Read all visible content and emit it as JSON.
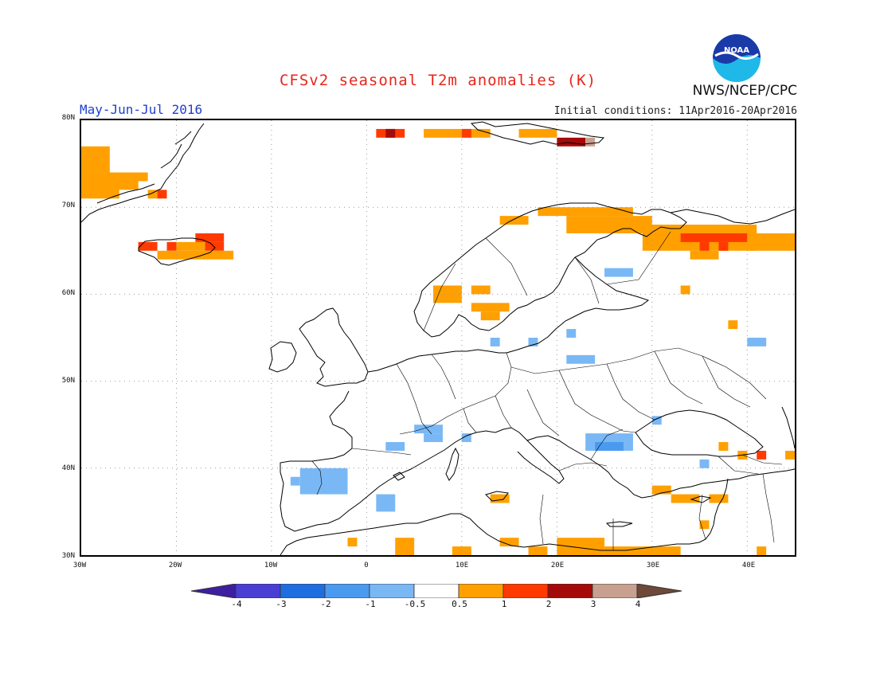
{
  "header": {
    "title": "CFSv2 seasonal T2m anomalies (K)",
    "period": "May-Jun-Jul 2016",
    "initial_conditions": "Initial conditions: 11Apr2016-20Apr2016",
    "organization": "NWS/NCEP/CPC",
    "logo_text": "NOAA"
  },
  "axes": {
    "lat_labels": [
      "80N",
      "70N",
      "60N",
      "50N",
      "40N",
      "30N"
    ],
    "lon_labels": [
      "30W",
      "20W",
      "10W",
      "0",
      "10E",
      "20E",
      "30E",
      "40E"
    ]
  },
  "colorbar": {
    "labels": [
      "-4",
      "-3",
      "-2",
      "-1",
      "-0.5",
      "0.5",
      "1",
      "2",
      "3",
      "4"
    ],
    "colors": [
      "#3d1fa0",
      "#4a3fd4",
      "#1f6ee0",
      "#4a9af0",
      "#7ab8f5",
      "#ffffff",
      "#ffa000",
      "#ff3a00",
      "#a50a0a",
      "#c8a090",
      "#6e4838"
    ]
  },
  "map": {
    "extent": {
      "lon_min": -30,
      "lon_max": 45,
      "lat_min": 30,
      "lat_max": 80
    },
    "grid_step_degrees": 1,
    "anomaly_colors": {
      "warm1": "#ffa000",
      "warm2": "#ff3a00",
      "warm3": "#a50a0a",
      "warm4": "#c8a090",
      "cold1": "#7ab8f5",
      "cold2": "#4a9af0"
    },
    "anomaly_cells": [
      {
        "lon": -30,
        "lat": 74,
        "w": 3,
        "h": 3,
        "c": "warm1"
      },
      {
        "lon": -30,
        "lat": 71,
        "w": 4,
        "h": 3,
        "c": "warm1"
      },
      {
        "lon": -27,
        "lat": 72,
        "w": 3,
        "h": 2,
        "c": "warm1"
      },
      {
        "lon": -25,
        "lat": 73,
        "w": 2,
        "h": 1,
        "c": "warm1"
      },
      {
        "lon": -22,
        "lat": 71,
        "w": 1,
        "h": 1,
        "c": "warm2"
      },
      {
        "lon": -23,
        "lat": 71,
        "w": 1,
        "h": 1,
        "c": "warm1"
      },
      {
        "lon": -24,
        "lat": 65,
        "w": 2,
        "h": 1,
        "c": "warm2"
      },
      {
        "lon": -21,
        "lat": 65,
        "w": 1,
        "h": 1,
        "c": "warm2"
      },
      {
        "lon": -17,
        "lat": 65,
        "w": 2,
        "h": 1,
        "c": "warm2"
      },
      {
        "lon": -22,
        "lat": 64,
        "w": 8,
        "h": 1,
        "c": "warm1"
      },
      {
        "lon": -20,
        "lat": 65,
        "w": 3,
        "h": 1,
        "c": "warm1"
      },
      {
        "lon": -18,
        "lat": 66,
        "w": 3,
        "h": 1,
        "c": "warm2"
      },
      {
        "lon": 1,
        "lat": 78,
        "w": 3,
        "h": 1,
        "c": "warm2"
      },
      {
        "lon": 2,
        "lat": 78,
        "w": 1,
        "h": 1,
        "c": "warm3"
      },
      {
        "lon": 6,
        "lat": 78,
        "w": 7,
        "h": 1,
        "c": "warm1"
      },
      {
        "lon": 10,
        "lat": 78,
        "w": 1,
        "h": 1,
        "c": "warm2"
      },
      {
        "lon": 16,
        "lat": 78,
        "w": 4,
        "h": 1,
        "c": "warm1"
      },
      {
        "lon": 20,
        "lat": 77,
        "w": 3,
        "h": 1,
        "c": "warm3"
      },
      {
        "lon": 23,
        "lat": 77,
        "w": 1,
        "h": 1,
        "c": "warm4"
      },
      {
        "lon": 18,
        "lat": 69,
        "w": 10,
        "h": 1,
        "c": "warm1"
      },
      {
        "lon": 21,
        "lat": 67,
        "w": 9,
        "h": 2,
        "c": "warm1"
      },
      {
        "lon": 14,
        "lat": 68,
        "w": 3,
        "h": 1,
        "c": "warm1"
      },
      {
        "lon": 29,
        "lat": 65,
        "w": 12,
        "h": 3,
        "c": "warm1"
      },
      {
        "lon": 33,
        "lat": 66,
        "w": 8,
        "h": 1,
        "c": "warm2"
      },
      {
        "lon": 40,
        "lat": 65,
        "w": 5,
        "h": 2,
        "c": "warm1"
      },
      {
        "lon": 34,
        "lat": 64,
        "w": 3,
        "h": 1,
        "c": "warm1"
      },
      {
        "lon": 35,
        "lat": 65,
        "w": 1,
        "h": 1,
        "c": "warm2"
      },
      {
        "lon": 37,
        "lat": 65,
        "w": 1,
        "h": 1,
        "c": "warm2"
      },
      {
        "lon": 33,
        "lat": 60,
        "w": 1,
        "h": 1,
        "c": "warm1"
      },
      {
        "lon": 7,
        "lat": 59,
        "w": 3,
        "h": 2,
        "c": "warm1"
      },
      {
        "lon": 11,
        "lat": 60,
        "w": 2,
        "h": 1,
        "c": "warm1"
      },
      {
        "lon": 11,
        "lat": 58,
        "w": 4,
        "h": 1,
        "c": "warm1"
      },
      {
        "lon": 12,
        "lat": 57,
        "w": 2,
        "h": 1,
        "c": "warm1"
      },
      {
        "lon": 38,
        "lat": 56,
        "w": 1,
        "h": 1,
        "c": "warm1"
      },
      {
        "lon": 13,
        "lat": 36,
        "w": 2,
        "h": 1,
        "c": "warm1"
      },
      {
        "lon": 30,
        "lat": 37,
        "w": 2,
        "h": 1,
        "c": "warm1"
      },
      {
        "lon": 32,
        "lat": 36,
        "w": 3,
        "h": 1,
        "c": "warm1"
      },
      {
        "lon": 36,
        "lat": 36,
        "w": 2,
        "h": 1,
        "c": "warm1"
      },
      {
        "lon": 37,
        "lat": 42,
        "w": 1,
        "h": 1,
        "c": "warm1"
      },
      {
        "lon": 39,
        "lat": 41,
        "w": 1,
        "h": 1,
        "c": "warm1"
      },
      {
        "lon": 41,
        "lat": 41,
        "w": 1,
        "h": 1,
        "c": "warm2"
      },
      {
        "lon": 44,
        "lat": 41,
        "w": 1,
        "h": 1,
        "c": "warm1"
      },
      {
        "lon": 35,
        "lat": 33,
        "w": 1,
        "h": 1,
        "c": "warm1"
      },
      {
        "lon": -2,
        "lat": 31,
        "w": 1,
        "h": 1,
        "c": "warm1"
      },
      {
        "lon": 3,
        "lat": 30,
        "w": 2,
        "h": 2,
        "c": "warm1"
      },
      {
        "lon": 9,
        "lat": 30,
        "w": 2,
        "h": 1,
        "c": "warm1"
      },
      {
        "lon": 14,
        "lat": 31,
        "w": 2,
        "h": 1,
        "c": "warm1"
      },
      {
        "lon": 17,
        "lat": 30,
        "w": 2,
        "h": 1,
        "c": "warm1"
      },
      {
        "lon": 20,
        "lat": 30,
        "w": 5,
        "h": 2,
        "c": "warm1"
      },
      {
        "lon": 25,
        "lat": 30,
        "w": 8,
        "h": 1,
        "c": "warm1"
      },
      {
        "lon": 41,
        "lat": 30,
        "w": 1,
        "h": 1,
        "c": "warm1"
      },
      {
        "lon": 25,
        "lat": 62,
        "w": 3,
        "h": 1,
        "c": "cold1"
      },
      {
        "lon": 21,
        "lat": 55,
        "w": 1,
        "h": 1,
        "c": "cold1"
      },
      {
        "lon": 13,
        "lat": 54,
        "w": 1,
        "h": 1,
        "c": "cold1"
      },
      {
        "lon": 17,
        "lat": 54,
        "w": 1,
        "h": 1,
        "c": "cold1"
      },
      {
        "lon": 21,
        "lat": 52,
        "w": 3,
        "h": 1,
        "c": "cold1"
      },
      {
        "lon": 40,
        "lat": 54,
        "w": 2,
        "h": 1,
        "c": "cold1"
      },
      {
        "lon": 2,
        "lat": 42,
        "w": 2,
        "h": 1,
        "c": "cold1"
      },
      {
        "lon": 5,
        "lat": 44,
        "w": 3,
        "h": 1,
        "c": "cold1"
      },
      {
        "lon": 6,
        "lat": 43,
        "w": 2,
        "h": 1,
        "c": "cold1"
      },
      {
        "lon": 10,
        "lat": 43,
        "w": 1,
        "h": 1,
        "c": "cold1"
      },
      {
        "lon": 23,
        "lat": 42,
        "w": 5,
        "h": 2,
        "c": "cold1"
      },
      {
        "lon": 24,
        "lat": 42,
        "w": 3,
        "h": 1,
        "c": "cold2"
      },
      {
        "lon": 30,
        "lat": 45,
        "w": 1,
        "h": 1,
        "c": "cold1"
      },
      {
        "lon": 35,
        "lat": 40,
        "w": 1,
        "h": 1,
        "c": "cold1"
      },
      {
        "lon": -7,
        "lat": 37,
        "w": 5,
        "h": 3,
        "c": "cold1"
      },
      {
        "lon": -8,
        "lat": 38,
        "w": 1,
        "h": 1,
        "c": "cold1"
      },
      {
        "lon": 1,
        "lat": 35,
        "w": 2,
        "h": 2,
        "c": "cold1"
      }
    ]
  }
}
